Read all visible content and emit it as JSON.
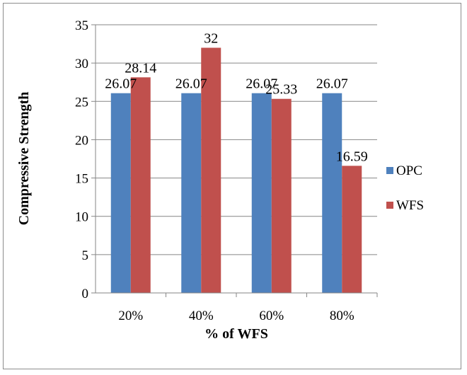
{
  "chart_data": {
    "type": "bar",
    "title": "",
    "xlabel": "% of WFS",
    "ylabel": "Compressive Strength",
    "categories": [
      "20%",
      "40%",
      "60%",
      "80%"
    ],
    "series": [
      {
        "name": "OPC",
        "values": [
          26.07,
          26.07,
          26.07,
          26.07
        ],
        "labels": [
          "26.07",
          "26.07",
          "26.07",
          "26.07"
        ],
        "color": "#4f81bd"
      },
      {
        "name": "WFS",
        "values": [
          28.14,
          32,
          25.33,
          16.59
        ],
        "labels": [
          "28.14",
          "32",
          "25.33",
          "16.59"
        ],
        "color": "#c0504d"
      }
    ],
    "ylim": [
      0,
      35
    ],
    "yticks": [
      "0",
      "5",
      "10",
      "15",
      "20",
      "25",
      "30",
      "35"
    ],
    "grid": true,
    "legend_position": "right"
  }
}
